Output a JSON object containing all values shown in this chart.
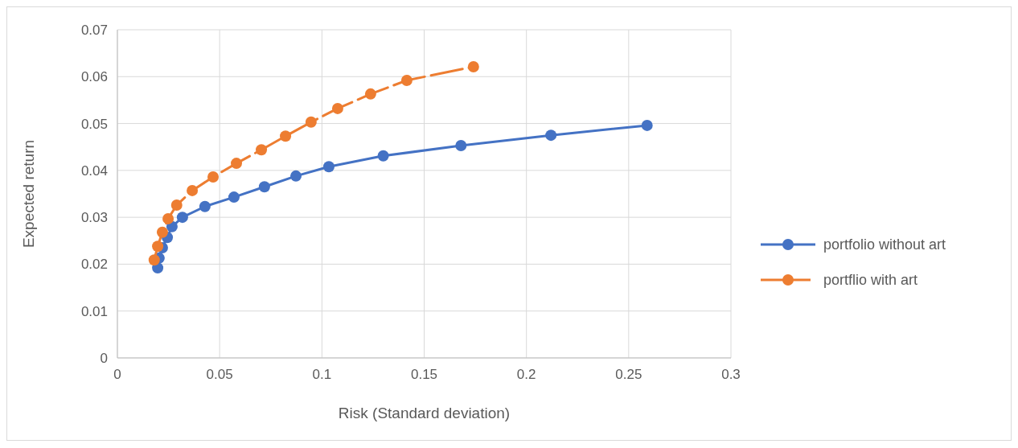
{
  "chart_data": {
    "type": "line",
    "xlabel": "Risk (Standard deviation)",
    "ylabel": "Expected return",
    "xlim": [
      0,
      0.3
    ],
    "xticks": [
      0,
      0.05,
      0.1,
      0.15,
      0.2,
      0.25,
      0.3
    ],
    "ylim": [
      0,
      0.07
    ],
    "yticks": [
      0,
      0.01,
      0.02,
      0.03,
      0.04,
      0.05,
      0.06,
      0.07
    ],
    "grid": true,
    "legend": "right",
    "marker": "circle",
    "series": [
      {
        "name": "portfolio without art",
        "color": "#4472c4",
        "line_style": "solid",
        "x": [
          0.0197,
          0.0204,
          0.022,
          0.0244,
          0.0267,
          0.0318,
          0.0428,
          0.057,
          0.0719,
          0.0873,
          0.1034,
          0.13,
          0.168,
          0.212,
          0.259
        ],
        "values": [
          0.0192,
          0.0213,
          0.0235,
          0.0257,
          0.028,
          0.03,
          0.0323,
          0.0343,
          0.0365,
          0.0388,
          0.0408,
          0.0431,
          0.0453,
          0.0475,
          0.0496
        ]
      },
      {
        "name": "portflio with art",
        "color": "#ed7d31",
        "line_style": "dashed",
        "x": [
          0.018,
          0.0197,
          0.022,
          0.0248,
          0.029,
          0.0366,
          0.0468,
          0.0582,
          0.0704,
          0.0822,
          0.0947,
          0.1077,
          0.1238,
          0.1415,
          0.1741
        ],
        "values": [
          0.0209,
          0.0238,
          0.0268,
          0.0297,
          0.0326,
          0.0357,
          0.0386,
          0.0415,
          0.0444,
          0.0473,
          0.0503,
          0.0532,
          0.0563,
          0.0592,
          0.0621
        ]
      }
    ]
  }
}
